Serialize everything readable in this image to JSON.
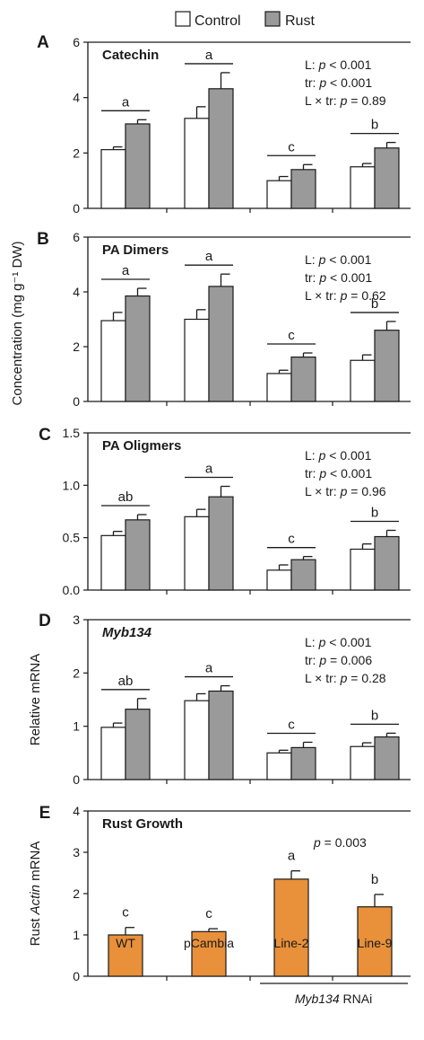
{
  "legend": [
    {
      "label": "Control",
      "color": "#ffffff"
    },
    {
      "label": "Rust",
      "color": "#9a9a9a"
    }
  ],
  "colors": {
    "control": "#ffffff",
    "rust": "#9a9a9a",
    "growth": "#e8903a",
    "stroke": "#1a1a1a"
  },
  "shared_ylabel": "Concentration (mg g⁻¹ DW)",
  "categories": [
    "WT",
    "pCambia",
    "Line-2",
    "Line-9"
  ],
  "group_label": {
    "gene": "Myb134",
    "suffix": " RNAi"
  },
  "chart_data": [
    {
      "type": "bar",
      "panel": "A",
      "title": "Catechin",
      "categories": [
        "WT",
        "pCambia",
        "Line-2",
        "Line-9"
      ],
      "ylim": [
        0,
        6
      ],
      "yticks": [
        "0",
        "2",
        "4",
        "6"
      ],
      "series": [
        {
          "name": "Control",
          "values": [
            2.12,
            3.25,
            1.0,
            1.5
          ],
          "errors": [
            0.1,
            0.42,
            0.15,
            0.12
          ]
        },
        {
          "name": "Rust",
          "values": [
            3.05,
            4.32,
            1.4,
            2.18
          ],
          "errors": [
            0.15,
            0.58,
            0.18,
            0.2
          ]
        }
      ],
      "significance": [
        "a",
        "a",
        "c",
        "b"
      ],
      "stats": [
        {
          "prefix": "L: ",
          "p": "p",
          "rest": " < 0.001"
        },
        {
          "prefix": "tr: ",
          "p": "p",
          "rest": " < 0.001"
        },
        {
          "prefix": "L × tr: ",
          "p": "p",
          "rest": " = 0.89"
        }
      ]
    },
    {
      "type": "bar",
      "panel": "B",
      "title": "PA Dimers",
      "categories": [
        "WT",
        "pCambia",
        "Line-2",
        "Line-9"
      ],
      "ylim": [
        0,
        6
      ],
      "yticks": [
        "0",
        "2",
        "4",
        "6"
      ],
      "series": [
        {
          "name": "Control",
          "values": [
            2.95,
            3.0,
            1.02,
            1.5
          ],
          "errors": [
            0.3,
            0.35,
            0.12,
            0.2
          ]
        },
        {
          "name": "Rust",
          "values": [
            3.85,
            4.2,
            1.62,
            2.6
          ],
          "errors": [
            0.28,
            0.45,
            0.15,
            0.32
          ]
        }
      ],
      "significance": [
        "a",
        "a",
        "c",
        "b"
      ],
      "stats": [
        {
          "prefix": "L: ",
          "p": "p",
          "rest": " < 0.001"
        },
        {
          "prefix": "tr: ",
          "p": "p",
          "rest": " < 0.001"
        },
        {
          "prefix": "L × tr: ",
          "p": "p",
          "rest": " = 0.62"
        }
      ]
    },
    {
      "type": "bar",
      "panel": "C",
      "title": "PA Oligmers",
      "categories": [
        "WT",
        "pCambia",
        "Line-2",
        "Line-9"
      ],
      "ylim": [
        0,
        1.5
      ],
      "yticks": [
        "0.0",
        "0.5",
        "1.0",
        "1.5"
      ],
      "series": [
        {
          "name": "Control",
          "values": [
            0.52,
            0.7,
            0.19,
            0.39
          ],
          "errors": [
            0.04,
            0.07,
            0.05,
            0.05
          ]
        },
        {
          "name": "Rust",
          "values": [
            0.67,
            0.89,
            0.29,
            0.51
          ],
          "errors": [
            0.05,
            0.1,
            0.03,
            0.06
          ]
        }
      ],
      "significance": [
        "ab",
        "a",
        "c",
        "b"
      ],
      "stats": [
        {
          "prefix": "L: ",
          "p": "p",
          "rest": " < 0.001"
        },
        {
          "prefix": "tr: ",
          "p": "p",
          "rest": " < 0.001"
        },
        {
          "prefix": "L × tr: ",
          "p": "p",
          "rest": " = 0.96"
        }
      ]
    },
    {
      "type": "bar",
      "panel": "D",
      "title": "Myb134",
      "ylabel": "Relative mRNA",
      "categories": [
        "WT",
        "pCambia",
        "Line-2",
        "Line-9"
      ],
      "ylim": [
        0,
        3
      ],
      "yticks": [
        "0",
        "1",
        "2",
        "3"
      ],
      "series": [
        {
          "name": "Control",
          "values": [
            0.98,
            1.48,
            0.5,
            0.62
          ],
          "errors": [
            0.08,
            0.13,
            0.05,
            0.07
          ]
        },
        {
          "name": "Rust",
          "values": [
            1.32,
            1.66,
            0.6,
            0.8
          ],
          "errors": [
            0.2,
            0.1,
            0.1,
            0.07
          ]
        }
      ],
      "significance": [
        "ab",
        "a",
        "c",
        "b"
      ],
      "stats": [
        {
          "prefix": "L: ",
          "p": "p",
          "rest": " < 0.001"
        },
        {
          "prefix": "tr: ",
          "p": "p",
          "rest": " = 0.006"
        },
        {
          "prefix": "L × tr: ",
          "p": "p",
          "rest": " = 0.28"
        }
      ]
    },
    {
      "type": "bar",
      "panel": "E",
      "title": "Rust Growth",
      "ylabel_pre": "Rust ",
      "ylabel_gene": "Actin",
      "ylabel_post": " mRNA",
      "categories": [
        "WT",
        "pCambia",
        "Line-2",
        "Line-9"
      ],
      "ylim": [
        0,
        4
      ],
      "yticks": [
        "0",
        "1",
        "2",
        "3",
        "4"
      ],
      "series": [
        {
          "values": [
            1.0,
            1.08,
            2.35,
            1.68
          ],
          "errors": [
            0.18,
            0.07,
            0.2,
            0.3
          ]
        }
      ],
      "significance": [
        "c",
        "c",
        "a",
        "b"
      ],
      "stats": [
        {
          "prefix": "",
          "p": "p",
          "rest": " = 0.003"
        }
      ]
    }
  ]
}
